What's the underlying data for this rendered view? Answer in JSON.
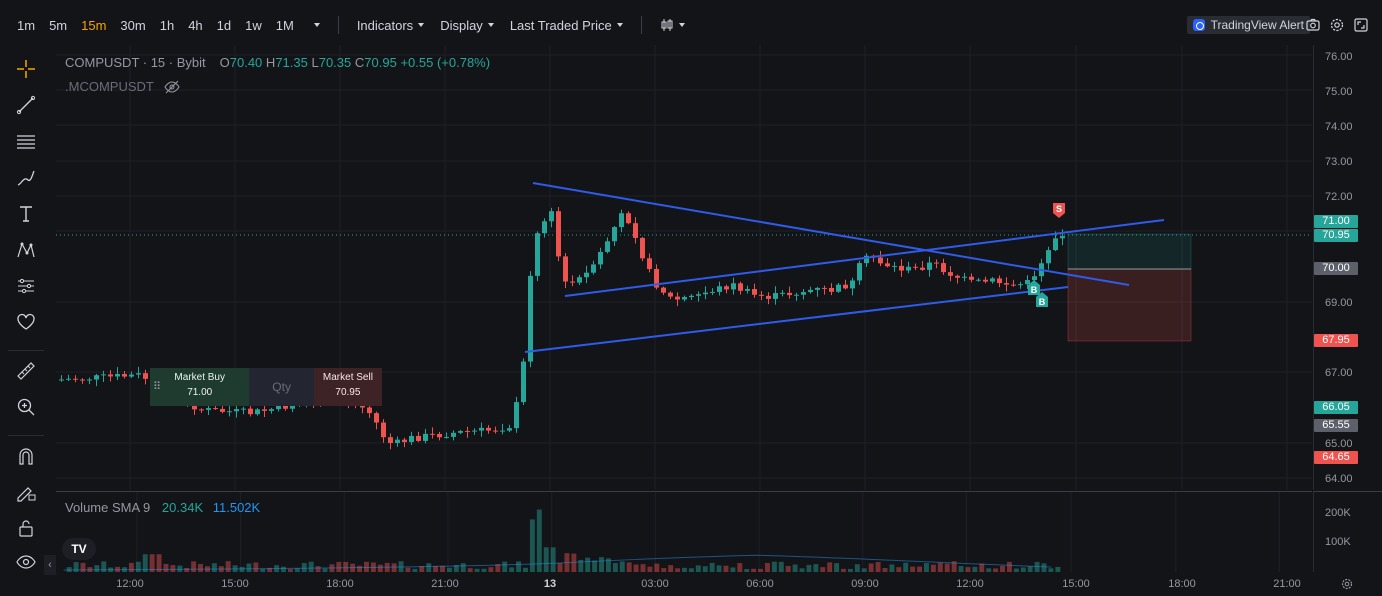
{
  "toolbar": {
    "timeframes": [
      "1m",
      "5m",
      "15m",
      "30m",
      "1h",
      "4h",
      "1d",
      "1w",
      "1M"
    ],
    "active_timeframe": "15m",
    "indicators_label": "Indicators",
    "display_label": "Display",
    "price_type_label": "Last Traded Price",
    "alert_label": "TradingView Alert"
  },
  "legend": {
    "symbol": "COMPUSDT · 15 · Bybit",
    "o_label": "O",
    "o_value": "70.40",
    "h_label": "H",
    "h_value": "71.35",
    "l_label": "L",
    "l_value": "70.35",
    "c_label": "C",
    "c_value": "70.95",
    "change": "+0.55 (+0.78%)",
    "secondary_symbol": ".MCOMPUSDT"
  },
  "order_panel": {
    "buy_label": "Market Buy",
    "buy_price": "71.00",
    "qty_placeholder": "Qty",
    "sell_label": "Market Sell",
    "sell_price": "70.95"
  },
  "price_axis": {
    "ticks": [
      "76.00",
      "75.00",
      "74.00",
      "73.00",
      "72.00",
      "69.00",
      "67.00",
      "65.00",
      "64.00"
    ],
    "badges": [
      {
        "text": "71.00",
        "color": "#26a69a"
      },
      {
        "text": "70.95",
        "color": "#26a69a"
      },
      {
        "text": "70.00",
        "color": "#5d606b"
      },
      {
        "text": "67.95",
        "color": "#ef5350"
      },
      {
        "text": "66.05",
        "color": "#26a69a"
      },
      {
        "text": "65.55",
        "color": "#5d606b"
      },
      {
        "text": "64.65",
        "color": "#ef5350"
      }
    ]
  },
  "volume": {
    "label": "Volume SMA 9",
    "value1": "20.34K",
    "value2": "11.502K",
    "ticks": [
      "200K",
      "100K"
    ]
  },
  "time_axis": {
    "labels": [
      "12:00",
      "15:00",
      "18:00",
      "21:00",
      "13",
      "03:00",
      "06:00",
      "09:00",
      "12:00",
      "15:00",
      "18:00",
      "21:00"
    ]
  },
  "markers": {
    "sell": "S",
    "buy": "B"
  },
  "logo": "TV",
  "colors": {
    "up": "#26a69a",
    "down": "#ef5350",
    "accent": "#f7a600",
    "line": "#2f5bea"
  }
}
